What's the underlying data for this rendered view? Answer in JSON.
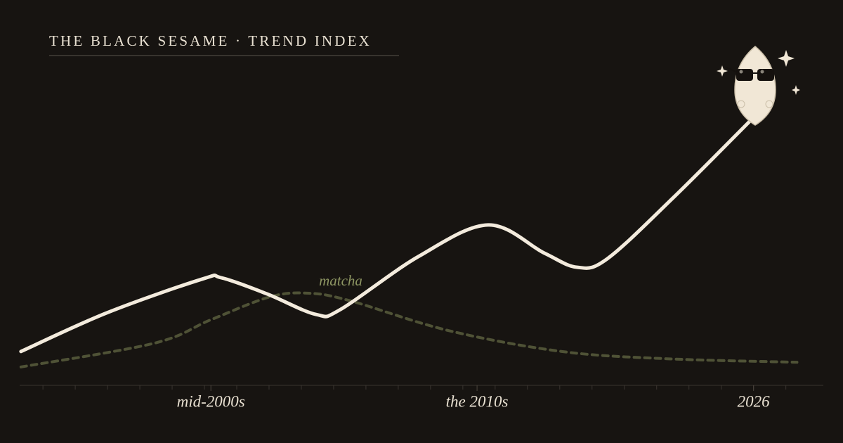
{
  "chart_data": {
    "type": "line",
    "title": "THE BLACK SESAME · TREND INDEX",
    "series": [
      {
        "color": "#f3ebdd",
        "style": "solid",
        "x": [
          1997.65,
          2000.97,
          2004.67,
          2005.4,
          2007.17,
          2009.07,
          2010.02,
          2013.03,
          2015.73,
          2017.9,
          2019.18,
          2020.34,
          2022.93,
          2025.92
        ],
        "values": [
          10.7,
          22.9,
          33.6,
          34,
          28.9,
          22.4,
          24,
          40.7,
          50.7,
          41.8,
          37.3,
          40,
          59.6,
          84
        ]
      },
      {
        "name": "matcha",
        "color": "#4f5236",
        "style": "dashed",
        "x": [
          1997.65,
          2002.8,
          2004.99,
          2007.3,
          2008.8,
          2010.4,
          2014.2,
          2018.58,
          2022.65,
          2027.68
        ],
        "values": [
          5.8,
          13.3,
          20.7,
          28,
          29.1,
          26.7,
          17.3,
          10.7,
          8.4,
          7.3
        ]
      }
    ],
    "xlim": [
      1997.6,
      2028.7
    ],
    "xticks": [
      {
        "value": 2005,
        "label": "mid-2000s"
      },
      {
        "value": 2015.3,
        "label": "the 2010s"
      },
      2026
    ],
    "xticks_minor": [
      1998.5,
      1999.75,
      2001,
      2002.25,
      2003.5,
      2004.75,
      2006,
      2007.25,
      2008.5,
      2009.75,
      2011,
      2012.25,
      2013.5,
      2014.75,
      2016,
      2017.25,
      2018.5,
      2019.75,
      2021,
      2022.25,
      2023.5,
      2024.75,
      2026,
      2027.25
    ],
    "ylim": [
      0,
      100
    ],
    "grid": false
  }
}
